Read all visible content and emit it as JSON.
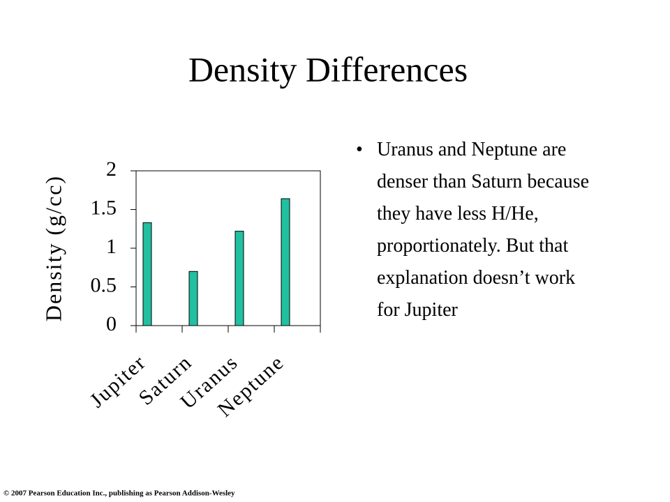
{
  "title": "Density Differences",
  "bullet": "Uranus and Neptune are denser than Saturn because they have less H/He, proportionately. But that explanation doesn’t work for Jupiter",
  "footer": "© 2007 Pearson Education Inc., publishing as Pearson Addison-Wesley",
  "chart_data": {
    "type": "bar",
    "y_label": "Density (g/cc)",
    "categories": [
      "Jupiter",
      "Saturn",
      "Uranus",
      "Neptune"
    ],
    "values": [
      1.33,
      0.7,
      1.22,
      1.64
    ],
    "color": "#20c0a0",
    "ylim": [
      0,
      2
    ],
    "yticks": [
      0,
      0.5,
      1,
      1.5,
      2
    ]
  }
}
